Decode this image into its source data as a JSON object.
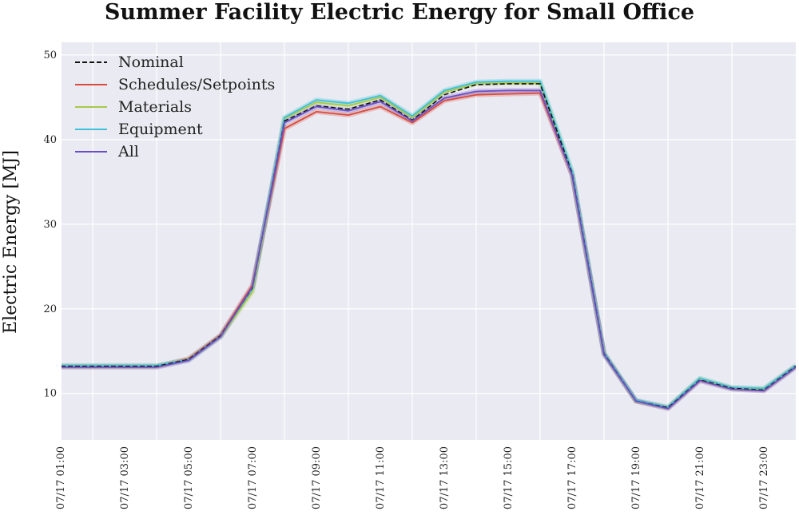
{
  "chart_data": {
    "type": "line",
    "title": "Summer Facility Electric Energy for Small Office",
    "xlabel": "",
    "ylabel": "Electric Energy [MJ]",
    "ylim": [
      4.5,
      51.5
    ],
    "yticks": [
      10,
      20,
      30,
      40,
      50
    ],
    "x": [
      "07/17 01:00",
      "07/17 02:00",
      "07/17 03:00",
      "07/17 04:00",
      "07/17 05:00",
      "07/17 06:00",
      "07/17 07:00",
      "07/17 08:00",
      "07/17 09:00",
      "07/17 10:00",
      "07/17 11:00",
      "07/17 12:00",
      "07/17 13:00",
      "07/17 14:00",
      "07/17 15:00",
      "07/17 16:00",
      "07/17 17:00",
      "07/17 18:00",
      "07/17 19:00",
      "07/17 20:00",
      "07/17 21:00",
      "07/17 22:00",
      "07/17 23:00",
      "07/17 24:00"
    ],
    "xtick_labels": [
      "07/17  01:00",
      "07/17  03:00",
      "07/17  05:00",
      "07/17  07:00",
      "07/17  09:00",
      "07/17  11:00",
      "07/17  13:00",
      "07/17  15:00",
      "07/17  17:00",
      "07/17  19:00",
      "07/17  21:00",
      "07/17  23:00"
    ],
    "grid": true,
    "legend_position": "top-left",
    "series": [
      {
        "name": "Nominal",
        "color": "#111111",
        "dashed": true,
        "values": [
          13.2,
          13.2,
          13.2,
          13.2,
          14.0,
          16.8,
          22.5,
          42.2,
          44.0,
          43.6,
          44.7,
          42.3,
          45.3,
          46.5,
          46.6,
          46.6,
          36.0,
          14.7,
          9.1,
          8.3,
          11.6,
          10.6,
          10.4,
          13.2
        ]
      },
      {
        "name": "Schedules/Setpoints",
        "color": "#d94a3e",
        "dashed": false,
        "values": [
          13.2,
          13.2,
          13.2,
          13.2,
          14.1,
          16.9,
          22.8,
          41.3,
          43.3,
          42.9,
          43.9,
          42.0,
          44.6,
          45.3,
          45.4,
          45.5,
          35.8,
          14.7,
          9.1,
          8.3,
          11.6,
          10.6,
          10.4,
          13.2
        ]
      },
      {
        "name": "Materials",
        "color": "#a8c94a",
        "dashed": false,
        "values": [
          13.2,
          13.2,
          13.2,
          13.2,
          14.0,
          16.7,
          22.0,
          42.5,
          44.4,
          44.0,
          45.0,
          42.6,
          45.6,
          46.6,
          46.7,
          46.7,
          36.0,
          14.7,
          9.1,
          8.3,
          11.7,
          10.6,
          10.5,
          13.2
        ]
      },
      {
        "name": "Equipment",
        "color": "#3fc1d8",
        "dashed": false,
        "values": [
          13.3,
          13.3,
          13.3,
          13.3,
          14.0,
          16.8,
          22.4,
          42.6,
          44.7,
          44.3,
          45.2,
          42.8,
          45.8,
          46.8,
          46.9,
          46.9,
          36.3,
          14.8,
          9.2,
          8.4,
          11.8,
          10.7,
          10.6,
          13.3
        ]
      },
      {
        "name": "All",
        "color": "#6a4fc4",
        "dashed": false,
        "values": [
          13.1,
          13.1,
          13.1,
          13.1,
          13.9,
          16.7,
          22.6,
          42.0,
          43.9,
          43.4,
          44.5,
          42.2,
          44.9,
          45.7,
          45.8,
          45.8,
          35.8,
          14.6,
          9.1,
          8.2,
          11.5,
          10.5,
          10.3,
          13.1
        ]
      }
    ]
  }
}
